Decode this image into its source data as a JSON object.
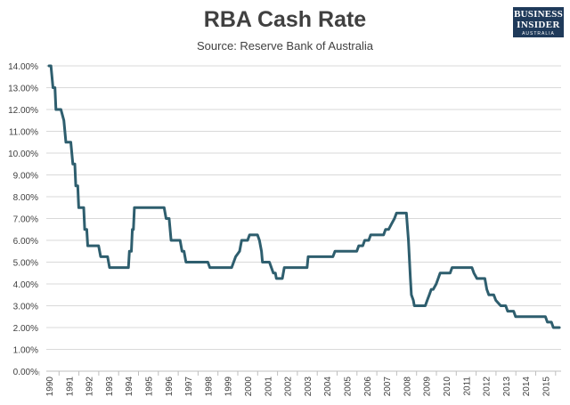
{
  "chart_data": {
    "type": "line",
    "title": "RBA Cash Rate",
    "subtitle": "Source: Reserve Bank of Australia",
    "xlabel": "",
    "ylabel": "",
    "y_ticks": [
      "0.00%",
      "1.00%",
      "2.00%",
      "3.00%",
      "4.00%",
      "5.00%",
      "6.00%",
      "7.00%",
      "8.00%",
      "9.00%",
      "10.00%",
      "11.00%",
      "12.00%",
      "13.00%",
      "14.00%"
    ],
    "x_ticks": [
      "1990",
      "1991",
      "1992",
      "1993",
      "1994",
      "1995",
      "1996",
      "1997",
      "1998",
      "1999",
      "2000",
      "2001",
      "2002",
      "2003",
      "2004",
      "2005",
      "2006",
      "2007",
      "2008",
      "2009",
      "2010",
      "2011",
      "2012",
      "2013",
      "2014",
      "2015"
    ],
    "ylim": [
      0,
      14
    ],
    "xlim": [
      1990,
      2015.7
    ],
    "grid": true,
    "series": [
      {
        "color": "#2e5e6e",
        "points": [
          [
            1990.0,
            14.0
          ],
          [
            1990.1,
            14.0
          ],
          [
            1990.2,
            13.0
          ],
          [
            1990.3,
            13.0
          ],
          [
            1990.35,
            12.0
          ],
          [
            1990.6,
            12.0
          ],
          [
            1990.75,
            11.5
          ],
          [
            1990.85,
            10.5
          ],
          [
            1991.1,
            10.5
          ],
          [
            1991.2,
            9.5
          ],
          [
            1991.3,
            9.5
          ],
          [
            1991.35,
            8.5
          ],
          [
            1991.45,
            8.5
          ],
          [
            1991.5,
            7.5
          ],
          [
            1991.75,
            7.5
          ],
          [
            1991.8,
            6.5
          ],
          [
            1991.9,
            6.5
          ],
          [
            1991.95,
            5.75
          ],
          [
            1992.5,
            5.75
          ],
          [
            1992.6,
            5.25
          ],
          [
            1992.95,
            5.25
          ],
          [
            1993.05,
            4.75
          ],
          [
            1994.0,
            4.75
          ],
          [
            1994.05,
            5.5
          ],
          [
            1994.15,
            5.5
          ],
          [
            1994.2,
            6.5
          ],
          [
            1994.25,
            6.5
          ],
          [
            1994.3,
            7.5
          ],
          [
            1995.8,
            7.5
          ],
          [
            1995.9,
            7.0
          ],
          [
            1996.05,
            7.0
          ],
          [
            1996.15,
            6.0
          ],
          [
            1996.6,
            6.0
          ],
          [
            1996.7,
            5.5
          ],
          [
            1996.8,
            5.5
          ],
          [
            1996.9,
            5.0
          ],
          [
            1998.0,
            5.0
          ],
          [
            1998.1,
            4.75
          ],
          [
            1999.2,
            4.75
          ],
          [
            1999.4,
            5.25
          ],
          [
            1999.6,
            5.5
          ],
          [
            1999.7,
            6.0
          ],
          [
            2000.0,
            6.0
          ],
          [
            2000.1,
            6.25
          ],
          [
            2000.5,
            6.25
          ],
          [
            2000.6,
            6.0
          ],
          [
            2000.7,
            5.5
          ],
          [
            2000.75,
            5.0
          ],
          [
            2001.1,
            5.0
          ],
          [
            2001.3,
            4.5
          ],
          [
            2001.4,
            4.5
          ],
          [
            2001.45,
            4.25
          ],
          [
            2001.75,
            4.25
          ],
          [
            2001.85,
            4.75
          ],
          [
            2003.0,
            4.75
          ],
          [
            2003.05,
            5.25
          ],
          [
            2004.3,
            5.25
          ],
          [
            2004.4,
            5.5
          ],
          [
            2005.5,
            5.5
          ],
          [
            2005.6,
            5.75
          ],
          [
            2005.8,
            5.75
          ],
          [
            2005.9,
            6.0
          ],
          [
            2006.1,
            6.0
          ],
          [
            2006.2,
            6.25
          ],
          [
            2006.85,
            6.25
          ],
          [
            2006.95,
            6.5
          ],
          [
            2007.1,
            6.5
          ],
          [
            2007.25,
            6.75
          ],
          [
            2007.4,
            7.0
          ],
          [
            2007.5,
            7.25
          ],
          [
            2008.0,
            7.25
          ],
          [
            2008.1,
            6.0
          ],
          [
            2008.2,
            4.25
          ],
          [
            2008.25,
            3.5
          ],
          [
            2008.35,
            3.25
          ],
          [
            2008.4,
            3.0
          ],
          [
            2008.95,
            3.0
          ],
          [
            2009.05,
            3.25
          ],
          [
            2009.15,
            3.5
          ],
          [
            2009.25,
            3.75
          ],
          [
            2009.35,
            3.75
          ],
          [
            2009.5,
            4.0
          ],
          [
            2009.6,
            4.25
          ],
          [
            2009.7,
            4.5
          ],
          [
            2010.2,
            4.5
          ],
          [
            2010.3,
            4.75
          ],
          [
            2011.3,
            4.75
          ],
          [
            2011.4,
            4.5
          ],
          [
            2011.55,
            4.25
          ],
          [
            2011.95,
            4.25
          ],
          [
            2012.05,
            3.75
          ],
          [
            2012.15,
            3.5
          ],
          [
            2012.4,
            3.5
          ],
          [
            2012.5,
            3.25
          ],
          [
            2012.75,
            3.0
          ],
          [
            2013.0,
            3.0
          ],
          [
            2013.1,
            2.75
          ],
          [
            2013.4,
            2.75
          ],
          [
            2013.5,
            2.5
          ],
          [
            2014.6,
            2.5
          ],
          [
            2015.0,
            2.5
          ],
          [
            2015.1,
            2.25
          ],
          [
            2015.3,
            2.25
          ],
          [
            2015.4,
            2.0
          ],
          [
            2015.7,
            2.0
          ]
        ]
      }
    ]
  },
  "brand": {
    "line1": "BUSINESS",
    "line2": "INSIDER",
    "line3": "AUSTRALIA"
  }
}
